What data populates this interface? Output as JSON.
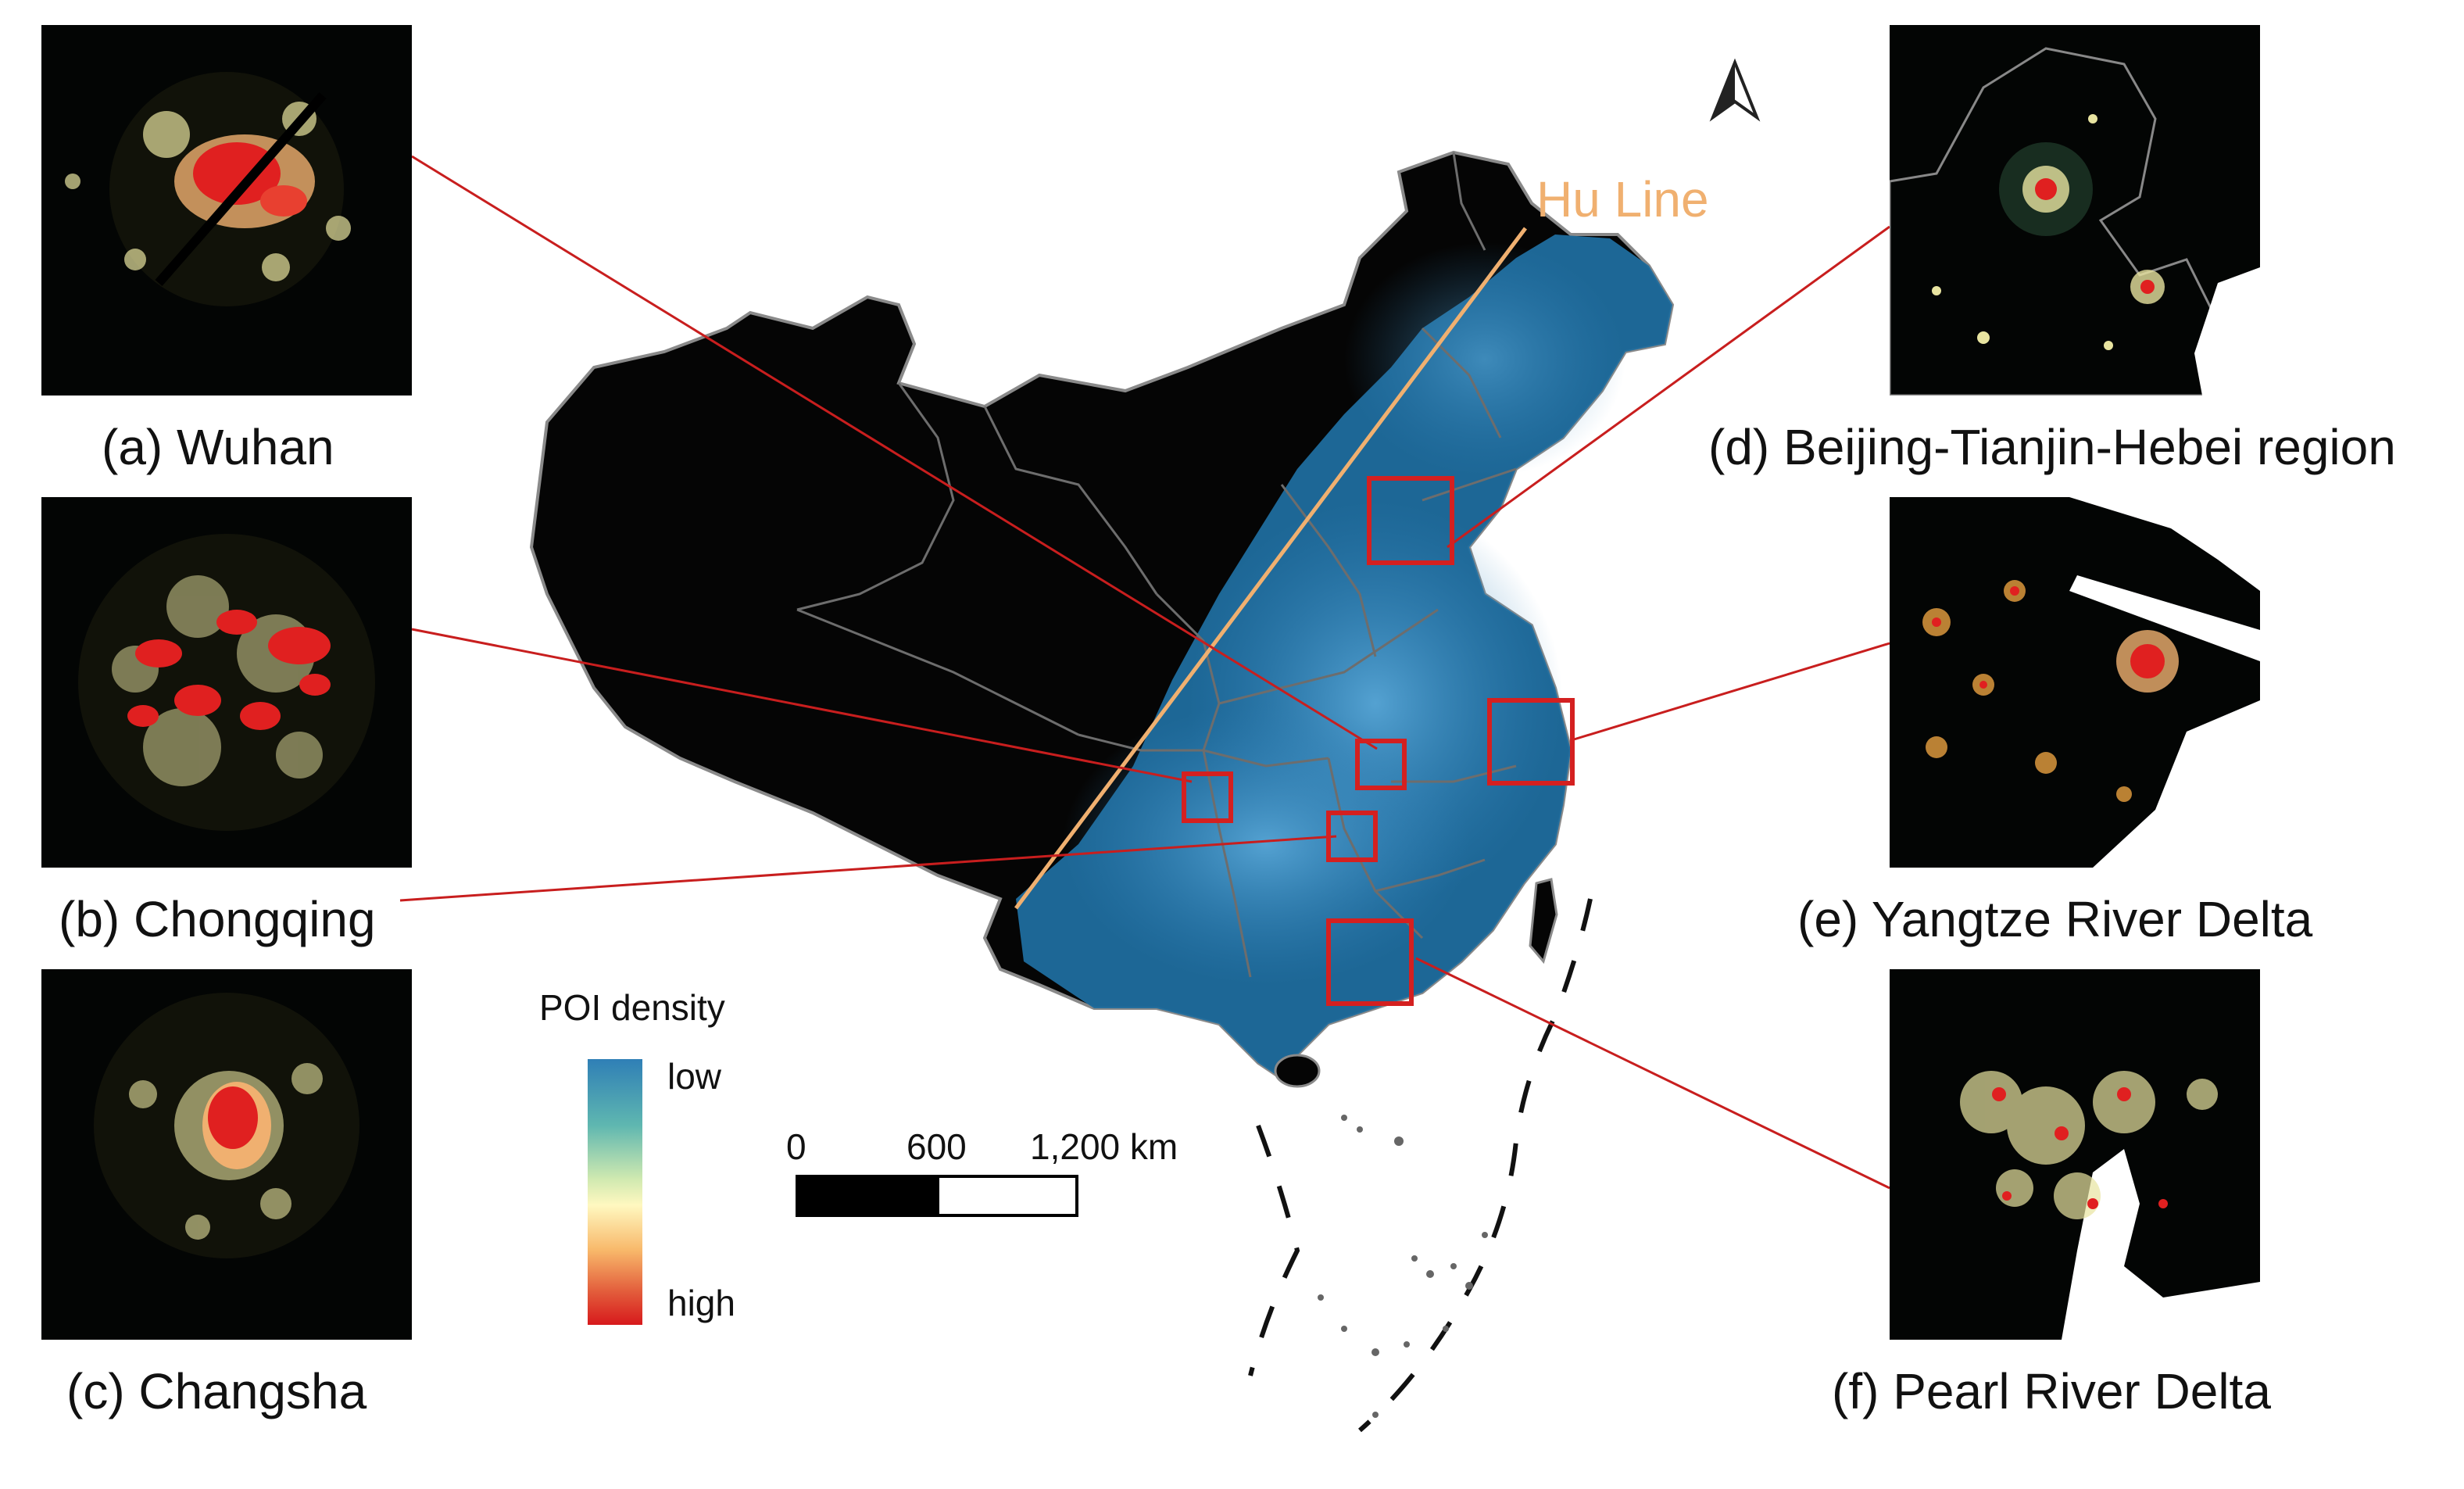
{
  "north_arrow_icon": "north-arrow-icon",
  "hu_line_label": "Hu Line",
  "legend": {
    "title": "POI density",
    "low_label": "low",
    "high_label": "high",
    "ramp_colors": [
      "#2f7fb6",
      "#5fb7b0",
      "#cfe9b0",
      "#fff8c0",
      "#f8b86a",
      "#e25a3a",
      "#d7191c"
    ]
  },
  "scale_bar": {
    "tick_0": "0",
    "tick_600": "600",
    "tick_1200": "1,200 km"
  },
  "panels": [
    {
      "id": "a",
      "caption": "(a) Wuhan"
    },
    {
      "id": "b",
      "caption": "(b) Chongqing"
    },
    {
      "id": "c",
      "caption": "(c) Changsha"
    },
    {
      "id": "d",
      "caption": "(d) Beijing-Tianjin-Hebei region"
    },
    {
      "id": "e",
      "caption": "(e) Yangtze River Delta"
    },
    {
      "id": "f",
      "caption": "(f) Pearl River Delta"
    }
  ],
  "colors": {
    "highlight_box": "#d42020",
    "leader_line": "#c81e1e",
    "hu_line": "#f0b070",
    "map_background": "#050505",
    "high_density_east": "#2f7fb6",
    "boundary": "#7a7a7a"
  }
}
